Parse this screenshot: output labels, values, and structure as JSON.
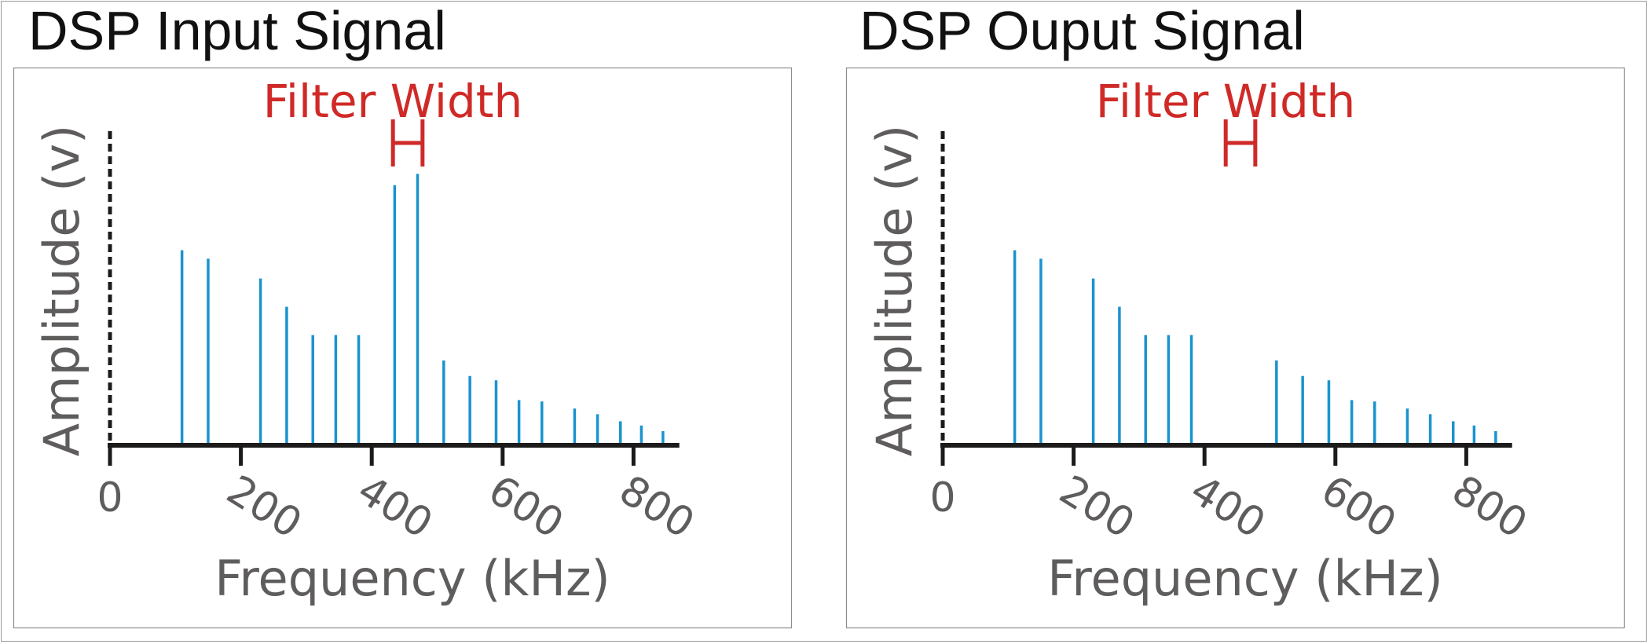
{
  "figure": {
    "panels": [
      {
        "title": "DSP Input Signal"
      },
      {
        "title": "DSP Ouput Signal"
      }
    ]
  },
  "colors": {
    "signal": "#1a93cf",
    "filter": "#cf2a27",
    "axis": "#1d1b1a",
    "label": "#5f5c5c",
    "title": "#111111"
  },
  "chart_data": [
    {
      "type": "bar",
      "title": "DSP Input Signal",
      "xlabel": "Frequency (kHz)",
      "ylabel": "Amplitude (v)",
      "xlim": [
        0,
        870
      ],
      "ylim": [
        0,
        1
      ],
      "x_ticks": [
        0,
        200,
        400,
        600,
        800
      ],
      "x_tick_labels": [
        "0",
        "200",
        "400",
        "600",
        "800"
      ],
      "annotation": {
        "text": "Filter Width",
        "range": [
          430,
          480
        ]
      },
      "x": [
        110,
        150,
        230,
        270,
        310,
        345,
        380,
        435,
        470,
        510,
        550,
        590,
        625,
        660,
        710,
        745,
        780,
        812,
        845
      ],
      "values": [
        0.69,
        0.66,
        0.59,
        0.49,
        0.39,
        0.39,
        0.39,
        0.92,
        0.96,
        0.3,
        0.245,
        0.23,
        0.16,
        0.155,
        0.13,
        0.11,
        0.085,
        0.07,
        0.05
      ]
    },
    {
      "type": "bar",
      "title": "DSP Ouput Signal",
      "xlabel": "Frequency (kHz)",
      "ylabel": "Amplitude (v)",
      "xlim": [
        0,
        870
      ],
      "ylim": [
        0,
        1
      ],
      "x_ticks": [
        0,
        200,
        400,
        600,
        800
      ],
      "x_tick_labels": [
        "0",
        "200",
        "400",
        "600",
        "800"
      ],
      "annotation": {
        "text": "Filter Width",
        "range": [
          430,
          480
        ]
      },
      "x": [
        110,
        150,
        230,
        270,
        310,
        345,
        380,
        510,
        550,
        590,
        625,
        660,
        710,
        745,
        780,
        812,
        845
      ],
      "values": [
        0.69,
        0.66,
        0.59,
        0.49,
        0.39,
        0.39,
        0.39,
        0.3,
        0.245,
        0.23,
        0.16,
        0.155,
        0.13,
        0.11,
        0.085,
        0.07,
        0.05
      ]
    }
  ]
}
